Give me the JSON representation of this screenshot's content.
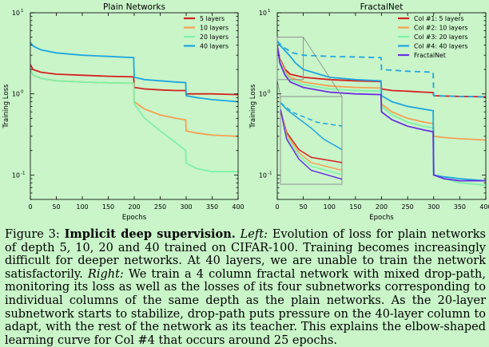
{
  "chart_data": [
    {
      "type": "line",
      "title": "Plain Networks",
      "xlabel": "Epochs",
      "ylabel": "Training Loss",
      "xlim": [
        0,
        400
      ],
      "ylim": [
        0.05,
        10
      ],
      "yscale": "log",
      "xticks": [
        "0",
        "50",
        "100",
        "150",
        "200",
        "250",
        "300",
        "350",
        "400"
      ],
      "legend_position": "top-right",
      "series": [
        {
          "name": "5 layers",
          "color": "#d62020",
          "dashed": false,
          "x": [
            0,
            5,
            20,
            50,
            100,
            150,
            199,
            200,
            220,
            250,
            280,
            299,
            300,
            320,
            350,
            400
          ],
          "y": [
            2.3,
            2.0,
            1.85,
            1.75,
            1.7,
            1.65,
            1.62,
            1.2,
            1.15,
            1.12,
            1.1,
            1.1,
            1.0,
            1.0,
            1.0,
            0.98
          ]
        },
        {
          "name": "10 layers",
          "color": "#f5a050",
          "dashed": false,
          "x": [
            0,
            5,
            20,
            50,
            100,
            150,
            199,
            200,
            220,
            250,
            280,
            299,
            300,
            320,
            350,
            400
          ],
          "y": [
            2.0,
            1.7,
            1.55,
            1.45,
            1.4,
            1.37,
            1.35,
            0.8,
            0.65,
            0.55,
            0.5,
            0.48,
            0.35,
            0.33,
            0.31,
            0.3
          ]
        },
        {
          "name": "20 layers",
          "color": "#80f0a8",
          "dashed": false,
          "x": [
            0,
            5,
            20,
            50,
            100,
            150,
            199,
            200,
            220,
            250,
            280,
            299,
            300,
            320,
            350,
            400
          ],
          "y": [
            2.0,
            1.7,
            1.55,
            1.45,
            1.4,
            1.37,
            1.35,
            0.75,
            0.5,
            0.35,
            0.25,
            0.2,
            0.14,
            0.12,
            0.11,
            0.11
          ]
        },
        {
          "name": "40 layers",
          "color": "#1ea6e0",
          "dashed": false,
          "x": [
            0,
            5,
            20,
            50,
            100,
            150,
            199,
            200,
            220,
            250,
            280,
            299,
            300,
            320,
            350,
            400
          ],
          "y": [
            4.3,
            3.9,
            3.5,
            3.2,
            3.0,
            2.9,
            2.8,
            1.6,
            1.5,
            1.45,
            1.4,
            1.38,
            0.95,
            0.9,
            0.85,
            0.8
          ]
        }
      ]
    },
    {
      "type": "line",
      "title": "FractalNet",
      "xlabel": "Epochs",
      "ylabel": "Training Loss",
      "xlim": [
        0,
        400
      ],
      "ylim": [
        0.05,
        10
      ],
      "yscale": "log",
      "xticks": [
        "0",
        "50",
        "100",
        "150",
        "200",
        "250",
        "300",
        "350",
        "400"
      ],
      "legend_position": "top-right",
      "inset": "zoom of epochs 0 to 50",
      "series": [
        {
          "name": "Col #1: 5 layers",
          "color": "#d62020",
          "dashed": false,
          "x": [
            0,
            5,
            15,
            25,
            50,
            100,
            150,
            199,
            200,
            220,
            250,
            280,
            299,
            300,
            320,
            350,
            400
          ],
          "y": [
            4.0,
            2.7,
            2.0,
            1.75,
            1.6,
            1.5,
            1.45,
            1.42,
            1.15,
            1.1,
            1.08,
            1.05,
            1.04,
            0.95,
            0.94,
            0.93,
            0.92
          ]
        },
        {
          "name": "Col #2: 10 layers",
          "color": "#f5a050",
          "dashed": false,
          "x": [
            0,
            5,
            15,
            25,
            50,
            100,
            150,
            199,
            200,
            220,
            250,
            280,
            299,
            300,
            320,
            350,
            400
          ],
          "y": [
            4.0,
            2.6,
            1.9,
            1.6,
            1.4,
            1.25,
            1.2,
            1.18,
            0.75,
            0.6,
            0.5,
            0.45,
            0.43,
            0.3,
            0.29,
            0.28,
            0.27
          ]
        },
        {
          "name": "Col #3: 20 layers",
          "color": "#80f0a8",
          "dashed": false,
          "x": [
            0,
            5,
            15,
            25,
            50,
            100,
            150,
            199,
            200,
            220,
            250,
            280,
            299,
            300,
            320,
            350,
            400
          ],
          "y": [
            4.0,
            2.5,
            1.8,
            1.5,
            1.3,
            1.15,
            1.1,
            1.08,
            0.7,
            0.55,
            0.45,
            0.4,
            0.38,
            0.1,
            0.09,
            0.08,
            0.075
          ]
        },
        {
          "name": "Col #4: 40 layers",
          "color": "#1ea6e0",
          "dashed": false,
          "x": [
            0,
            5,
            15,
            25,
            35,
            50,
            100,
            150,
            199,
            200,
            220,
            250,
            280,
            299,
            300,
            320,
            350,
            400
          ],
          "y": [
            4.5,
            4.0,
            3.4,
            2.9,
            2.4,
            2.0,
            1.6,
            1.5,
            1.45,
            0.95,
            0.8,
            0.7,
            0.65,
            0.62,
            0.1,
            0.095,
            0.09,
            0.085
          ]
        },
        {
          "color": "#1ea6e0",
          "dashed": true,
          "x": [
            0,
            10,
            30,
            50,
            100,
            150,
            199,
            200,
            250,
            299,
            300,
            350,
            400
          ],
          "y": [
            4.5,
            3.8,
            3.2,
            3.0,
            2.9,
            2.85,
            2.8,
            2.0,
            1.9,
            1.85,
            0.95,
            0.93,
            0.92
          ]
        },
        {
          "name": "FractalNet",
          "color": "#6a2ee0",
          "dashed": false,
          "x": [
            0,
            5,
            15,
            25,
            50,
            100,
            150,
            199,
            200,
            220,
            250,
            280,
            299,
            300,
            320,
            350,
            400
          ],
          "y": [
            4.0,
            2.4,
            1.7,
            1.4,
            1.2,
            1.05,
            1.0,
            0.98,
            0.6,
            0.48,
            0.4,
            0.36,
            0.34,
            0.1,
            0.09,
            0.085,
            0.085
          ]
        }
      ]
    }
  ],
  "caption": {
    "label": "Figure 3:",
    "heading": "Implicit deep supervision.",
    "left_label": "Left:",
    "part1": "Evolution of loss for plain networks of depth 5, 10, 20 and 40 trained on CIFAR-100. Training becomes increasingly difficult for deeper networks. At 40 layers, we are unable to train the network satisfactorily.",
    "right_label": "Right:",
    "part2": "We train a 4 column fractal network with mixed drop-path, monitoring its loss as well as the losses of its four subnetworks corresponding to individual columns of the same depth as the plain networks. As the 20-layer subnetwork starts to stabilize, drop-path puts pressure on the 40-layer column to adapt, with the rest of the network as its teacher. This explains the elbow-shaped learning curve for Col #4 that occurs around 25 epochs."
  }
}
